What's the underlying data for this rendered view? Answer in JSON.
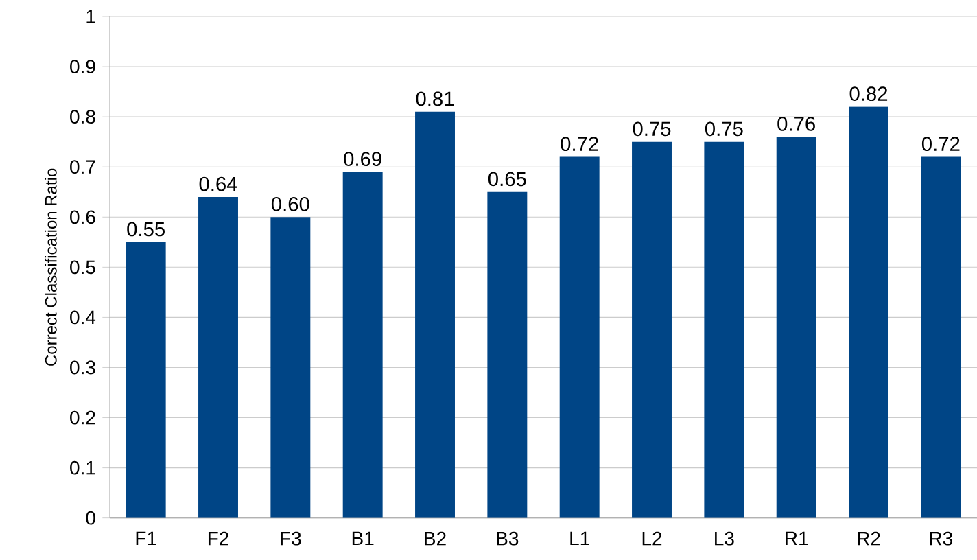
{
  "chart_data": {
    "type": "bar",
    "ylabel": "Correct Classification Ratio",
    "categories": [
      "F1",
      "F2",
      "F3",
      "B1",
      "B2",
      "B3",
      "L1",
      "L2",
      "L3",
      "R1",
      "R2",
      "R3"
    ],
    "values": [
      0.55,
      0.64,
      0.6,
      0.69,
      0.81,
      0.65,
      0.72,
      0.75,
      0.75,
      0.76,
      0.82,
      0.72
    ],
    "value_labels": [
      "0.55",
      "0.64",
      "0.60",
      "0.69",
      "0.81",
      "0.65",
      "0.72",
      "0.75",
      "0.75",
      "0.76",
      "0.82",
      "0.72"
    ],
    "color": "#004586",
    "ylim": [
      0,
      1
    ],
    "yticks": [
      0,
      0.1,
      0.2,
      0.3,
      0.4,
      0.5,
      0.6,
      0.7,
      0.8,
      0.9,
      1
    ],
    "grid": "y"
  }
}
